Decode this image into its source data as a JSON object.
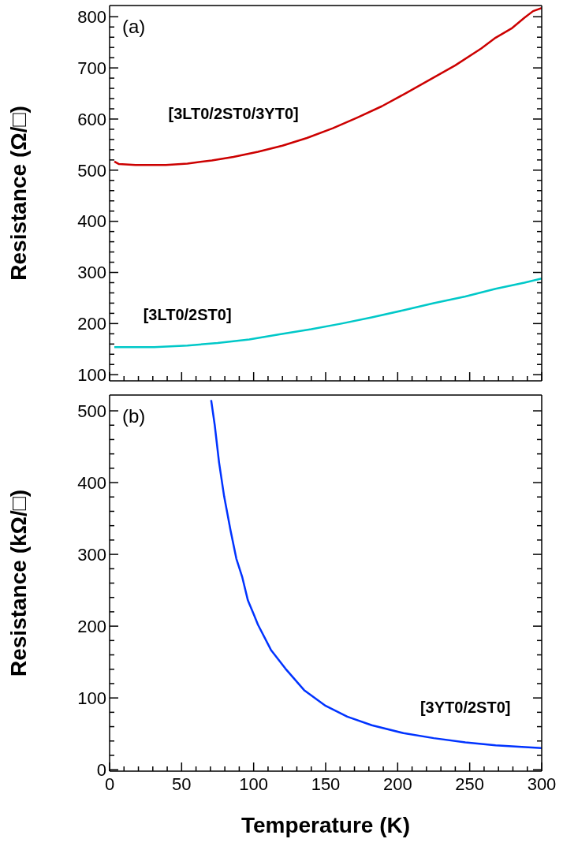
{
  "chart_data": [
    {
      "type": "line",
      "ylabel": "Resistance (Ω/□)",
      "annotations": [
        "(a)"
      ],
      "tick_labels": "y",
      "marker": "none",
      "xlim": [
        0,
        300
      ],
      "xticks": [
        0,
        {
          "value": 10,
          "label": null
        },
        {
          "value": 20,
          "label": null
        },
        {
          "value": 30,
          "label": null
        },
        {
          "value": 40,
          "label": null
        },
        50,
        {
          "value": 60,
          "label": null
        },
        {
          "value": 70,
          "label": null
        },
        {
          "value": 80,
          "label": null
        },
        {
          "value": 90,
          "label": null
        },
        100,
        {
          "value": 110,
          "label": null
        },
        {
          "value": 120,
          "label": null
        },
        {
          "value": 130,
          "label": null
        },
        {
          "value": 140,
          "label": null
        },
        150,
        {
          "value": 160,
          "label": null
        },
        {
          "value": 170,
          "label": null
        },
        {
          "value": 180,
          "label": null
        },
        {
          "value": 190,
          "label": null
        },
        200,
        {
          "value": 210,
          "label": null
        },
        {
          "value": 220,
          "label": null
        },
        {
          "value": 230,
          "label": null
        },
        {
          "value": 240,
          "label": null
        },
        250,
        {
          "value": 260,
          "label": null
        },
        {
          "value": 270,
          "label": null
        },
        {
          "value": 280,
          "label": null
        },
        {
          "value": 290,
          "label": null
        },
        300
      ],
      "ylim": [
        88,
        822
      ],
      "yticks": [
        100,
        {
          "value": 120,
          "label": null
        },
        {
          "value": 140,
          "label": null
        },
        {
          "value": 160,
          "label": null
        },
        {
          "value": 180,
          "label": null
        },
        200,
        {
          "value": 220,
          "label": null
        },
        {
          "value": 240,
          "label": null
        },
        {
          "value": 260,
          "label": null
        },
        {
          "value": 280,
          "label": null
        },
        300,
        {
          "value": 320,
          "label": null
        },
        {
          "value": 340,
          "label": null
        },
        {
          "value": 360,
          "label": null
        },
        {
          "value": 380,
          "label": null
        },
        400,
        {
          "value": 420,
          "label": null
        },
        {
          "value": 440,
          "label": null
        },
        {
          "value": 460,
          "label": null
        },
        {
          "value": 480,
          "label": null
        },
        500,
        {
          "value": 520,
          "label": null
        },
        {
          "value": 540,
          "label": null
        },
        {
          "value": 560,
          "label": null
        },
        {
          "value": 580,
          "label": null
        },
        600,
        {
          "value": 620,
          "label": null
        },
        {
          "value": 640,
          "label": null
        },
        {
          "value": 660,
          "label": null
        },
        {
          "value": 680,
          "label": null
        },
        700,
        {
          "value": 720,
          "label": null
        },
        {
          "value": 740,
          "label": null
        },
        {
          "value": 760,
          "label": null
        },
        {
          "value": 780,
          "label": null
        },
        800
      ],
      "series": [
        {
          "name": "[3LT0/2ST0/3YT0]",
          "color": "#cc0000",
          "x": [
            3.3,
            6.5,
            18,
            39,
            54,
            71,
            86,
            103,
            120,
            137,
            155,
            172,
            189,
            206,
            223,
            240,
            258,
            268,
            279,
            288,
            294,
            300
          ],
          "values": [
            517,
            512,
            510,
            510,
            513,
            519,
            526,
            536,
            548,
            563,
            582,
            603,
            625,
            651,
            678,
            705,
            738,
            759,
            777,
            798,
            811,
            817
          ]
        },
        {
          "name": "[3LT0/2ST0]",
          "color": "#00c8c8",
          "x": [
            3.3,
            31,
            54,
            75,
            97,
            118,
            140,
            161,
            182,
            204,
            225,
            247,
            268,
            288,
            300
          ],
          "values": [
            154,
            154,
            157,
            162,
            169,
            179,
            189,
            200,
            212,
            226,
            240,
            253,
            268,
            280,
            288
          ]
        }
      ]
    },
    {
      "type": "line",
      "ylabel": "Resistance (kΩ/□)",
      "xlabel": "Temperature (K)",
      "annotations": [
        "(b)"
      ],
      "marker": "none",
      "xlim": [
        0,
        300
      ],
      "xticks": [
        0,
        {
          "value": 10,
          "label": null
        },
        {
          "value": 20,
          "label": null
        },
        {
          "value": 30,
          "label": null
        },
        {
          "value": 40,
          "label": null
        },
        50,
        {
          "value": 60,
          "label": null
        },
        {
          "value": 70,
          "label": null
        },
        {
          "value": 80,
          "label": null
        },
        {
          "value": 90,
          "label": null
        },
        100,
        {
          "value": 110,
          "label": null
        },
        {
          "value": 120,
          "label": null
        },
        {
          "value": 130,
          "label": null
        },
        {
          "value": 140,
          "label": null
        },
        150,
        {
          "value": 160,
          "label": null
        },
        {
          "value": 170,
          "label": null
        },
        {
          "value": 180,
          "label": null
        },
        {
          "value": 190,
          "label": null
        },
        200,
        {
          "value": 210,
          "label": null
        },
        {
          "value": 220,
          "label": null
        },
        {
          "value": 230,
          "label": null
        },
        {
          "value": 240,
          "label": null
        },
        250,
        {
          "value": 260,
          "label": null
        },
        {
          "value": 270,
          "label": null
        },
        {
          "value": 280,
          "label": null
        },
        {
          "value": 290,
          "label": null
        },
        300
      ],
      "ylim": [
        -2,
        522
      ],
      "yticks": [
        0,
        {
          "value": 20,
          "label": null
        },
        {
          "value": 40,
          "label": null
        },
        {
          "value": 60,
          "label": null
        },
        {
          "value": 80,
          "label": null
        },
        100,
        {
          "value": 120,
          "label": null
        },
        {
          "value": 140,
          "label": null
        },
        {
          "value": 160,
          "label": null
        },
        {
          "value": 180,
          "label": null
        },
        200,
        {
          "value": 220,
          "label": null
        },
        {
          "value": 240,
          "label": null
        },
        {
          "value": 260,
          "label": null
        },
        {
          "value": 280,
          "label": null
        },
        300,
        {
          "value": 320,
          "label": null
        },
        {
          "value": 340,
          "label": null
        },
        {
          "value": 360,
          "label": null
        },
        {
          "value": 380,
          "label": null
        },
        400,
        {
          "value": 420,
          "label": null
        },
        {
          "value": 440,
          "label": null
        },
        {
          "value": 460,
          "label": null
        },
        {
          "value": 480,
          "label": null
        },
        500
      ],
      "series": [
        {
          "name": "[3YT0/2ST0]",
          "color": "#0033ff",
          "x": [
            70.5,
            73,
            76,
            79.5,
            84,
            88,
            92,
            96,
            100,
            103,
            112,
            122,
            135,
            150,
            165,
            182,
            204,
            225,
            247,
            268,
            300
          ],
          "values": [
            515,
            480,
            428,
            381,
            333,
            294,
            269,
            236,
            217,
            202,
            167,
            141,
            111,
            89,
            74,
            62,
            51,
            44,
            38,
            34,
            30
          ]
        }
      ]
    }
  ]
}
